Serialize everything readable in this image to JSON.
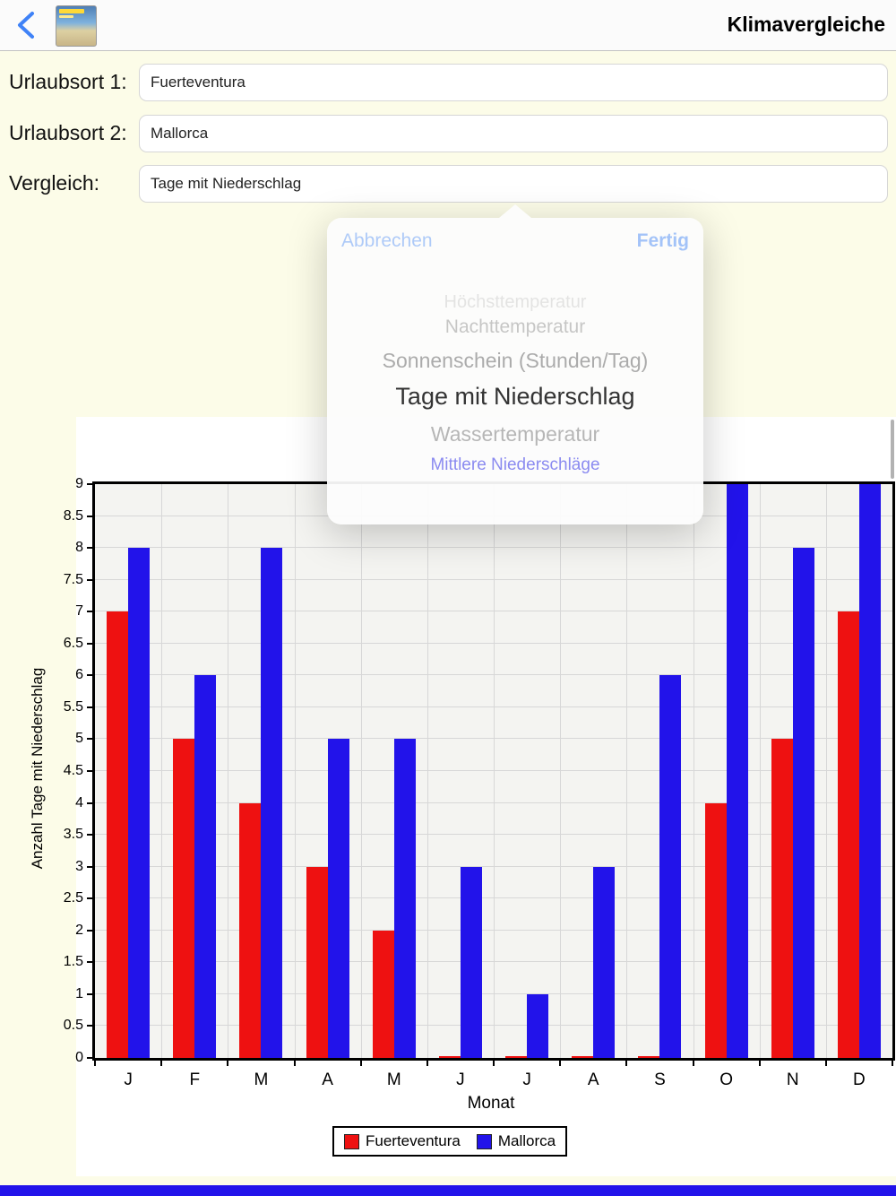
{
  "nav": {
    "title": "Klimavergleiche"
  },
  "form": {
    "fields": [
      {
        "label": "Urlaubsort 1:",
        "value": "Fuerteventura"
      },
      {
        "label": "Urlaubsort 2:",
        "value": "Mallorca"
      },
      {
        "label": "Vergleich:",
        "value": "Tage mit Niederschlag"
      }
    ]
  },
  "picker": {
    "cancel_label": "Abbrechen",
    "done_label": "Fertig",
    "selected": "Tage mit Niederschlag",
    "link_color": "#8585f0",
    "options": [
      {
        "label": "Höchsttemperatur",
        "style": "normal"
      },
      {
        "label": "Nachttemperatur",
        "style": "normal"
      },
      {
        "label": "Sonnenschein (Stunden/Tag)",
        "style": "normal"
      },
      {
        "label": "Tage mit Niederschlag",
        "style": "normal"
      },
      {
        "label": "Wassertemperatur",
        "style": "normal"
      },
      {
        "label": "Mittlere Niederschläge",
        "style": "link"
      }
    ]
  },
  "chart_data": {
    "type": "bar",
    "title": "",
    "categories": [
      "J",
      "F",
      "M",
      "A",
      "M",
      "J",
      "J",
      "A",
      "S",
      "O",
      "N",
      "D"
    ],
    "series": [
      {
        "name": "Fuerteventura",
        "color": "#ee1111",
        "values": [
          7,
          5,
          4,
          3,
          2,
          0,
          0,
          0,
          0,
          4,
          5,
          7
        ]
      },
      {
        "name": "Mallorca",
        "color": "#2213ea",
        "values": [
          8,
          6,
          8,
          5,
          5,
          3,
          1,
          3,
          6,
          9,
          8,
          9
        ]
      }
    ],
    "xlabel": "Monat",
    "ylabel": "Anzahl Tage mit Niederschlag",
    "ylim": [
      0,
      9
    ],
    "ytick_step": 0.5,
    "grid": true,
    "legend_position": "bottom"
  },
  "colors": {
    "accent": "#3f82f7",
    "form_background": "#fcfce8",
    "bottom_strip": "#2213ea"
  }
}
